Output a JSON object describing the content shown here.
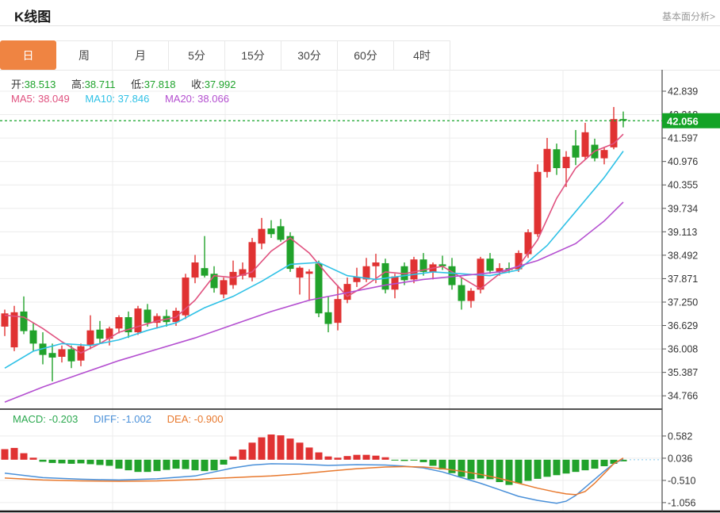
{
  "header": {
    "title": "K线图",
    "link": "基本面分析>"
  },
  "tabs": {
    "items": [
      {
        "label": "日",
        "active": true
      },
      {
        "label": "周",
        "active": false
      },
      {
        "label": "月",
        "active": false
      },
      {
        "label": "5分",
        "active": false
      },
      {
        "label": "15分",
        "active": false
      },
      {
        "label": "30分",
        "active": false
      },
      {
        "label": "60分",
        "active": false
      },
      {
        "label": "4时",
        "active": false
      }
    ]
  },
  "readouts": {
    "ohlc": [
      {
        "label": "开:",
        "value": "38.513"
      },
      {
        "label": "高:",
        "value": "38.711"
      },
      {
        "label": "低:",
        "value": "37.818"
      },
      {
        "label": "收:",
        "value": "37.992"
      }
    ],
    "ma": [
      {
        "label": "MA5:",
        "value": "38.049"
      },
      {
        "label": "MA10:",
        "value": "37.846"
      },
      {
        "label": "MA20:",
        "value": "38.066"
      }
    ],
    "macd": [
      {
        "label": "MACD:",
        "value": "-0.203"
      },
      {
        "label": "DIFF:",
        "value": "-1.002"
      },
      {
        "label": "DEA:",
        "value": "-0.900"
      }
    ]
  },
  "colors": {
    "up": "#e03232",
    "down": "#21a22b",
    "ma5": "#e0517f",
    "ma10": "#2fc1e6",
    "ma20": "#b44fd0",
    "diff": "#4a90d9",
    "dea": "#e8792e",
    "tab_active": "#ef8442",
    "price_line": "#14a327",
    "badge": "#14a327",
    "grid": "#ececec",
    "axis": "#555",
    "separator": "#1a1a1a"
  },
  "chart_data": {
    "type": "candlestick+macd",
    "title": "K线图",
    "legend": [
      "MA5",
      "MA10",
      "MA20",
      "MACD",
      "DIFF",
      "DEA"
    ],
    "grid": true,
    "y_axis_side": "right",
    "current_price": "42.056",
    "price_axis_labels": [
      "42.839",
      "42.218",
      "41.597",
      "40.976",
      "40.355",
      "39.734",
      "39.113",
      "38.492",
      "37.871",
      "37.250",
      "36.629",
      "36.008",
      "35.387",
      "34.766"
    ],
    "price_axis_top_value": 42.839,
    "price_axis_step": 0.621,
    "macd_axis_labels": [
      "0.582",
      "0.036",
      "-0.510",
      "-1.056"
    ],
    "macd_axis_top_value": 0.582,
    "macd_axis_step": 0.546,
    "candles_ohlc": [
      [
        36.6,
        37.05,
        36.35,
        36.95
      ],
      [
        36.05,
        37.15,
        35.95,
        36.98
      ],
      [
        37.0,
        37.4,
        36.4,
        36.48
      ],
      [
        36.5,
        36.7,
        35.95,
        36.15
      ],
      [
        36.15,
        36.45,
        35.6,
        35.85
      ],
      [
        35.9,
        36.15,
        35.15,
        35.78
      ],
      [
        35.8,
        36.1,
        35.65,
        36.0
      ],
      [
        36.0,
        36.1,
        35.5,
        35.68
      ],
      [
        35.7,
        36.15,
        35.55,
        36.08
      ],
      [
        36.1,
        36.9,
        36.0,
        36.5
      ],
      [
        36.52,
        36.75,
        36.15,
        36.28
      ],
      [
        36.28,
        36.6,
        36.1,
        36.55
      ],
      [
        36.55,
        36.9,
        36.42,
        36.85
      ],
      [
        36.85,
        37.0,
        36.3,
        36.45
      ],
      [
        36.45,
        37.15,
        36.38,
        37.08
      ],
      [
        37.05,
        37.2,
        36.6,
        36.7
      ],
      [
        36.7,
        36.95,
        36.55,
        36.88
      ],
      [
        36.88,
        37.05,
        36.6,
        36.72
      ],
      [
        36.72,
        37.1,
        36.62,
        37.02
      ],
      [
        36.9,
        38.0,
        36.8,
        37.9
      ],
      [
        37.9,
        38.5,
        37.75,
        38.3
      ],
      [
        38.15,
        39.0,
        37.9,
        37.95
      ],
      [
        38.0,
        38.2,
        37.5,
        37.62
      ],
      [
        37.45,
        37.9,
        37.35,
        37.83
      ],
      [
        37.7,
        38.35,
        37.6,
        38.05
      ],
      [
        37.95,
        38.3,
        37.85,
        38.12
      ],
      [
        37.9,
        38.95,
        37.8,
        38.84
      ],
      [
        38.8,
        39.48,
        38.65,
        39.19
      ],
      [
        39.2,
        39.42,
        38.95,
        39.05
      ],
      [
        39.26,
        39.45,
        38.85,
        38.9
      ],
      [
        39.0,
        39.1,
        38.05,
        38.13
      ],
      [
        37.9,
        38.2,
        37.45,
        38.16
      ],
      [
        38.0,
        38.12,
        37.28,
        38.06
      ],
      [
        38.27,
        38.35,
        36.85,
        36.95
      ],
      [
        36.98,
        37.4,
        36.45,
        36.67
      ],
      [
        36.7,
        37.7,
        36.5,
        37.33
      ],
      [
        37.31,
        37.9,
        37.22,
        37.73
      ],
      [
        37.78,
        38.16,
        37.65,
        37.92
      ],
      [
        37.85,
        38.42,
        37.78,
        38.2
      ],
      [
        38.2,
        38.53,
        37.75,
        38.3
      ],
      [
        38.28,
        38.4,
        37.48,
        37.58
      ],
      [
        37.58,
        38.0,
        37.35,
        37.93
      ],
      [
        38.2,
        38.3,
        37.7,
        37.83
      ],
      [
        37.85,
        38.45,
        37.75,
        38.38
      ],
      [
        38.38,
        38.55,
        37.95,
        38.05
      ],
      [
        38.05,
        38.3,
        37.85,
        38.25
      ],
      [
        38.25,
        38.48,
        38.1,
        38.2
      ],
      [
        38.2,
        38.42,
        37.58,
        37.7
      ],
      [
        37.7,
        37.88,
        37.05,
        37.28
      ],
      [
        37.28,
        37.62,
        37.1,
        37.55
      ],
      [
        37.58,
        38.45,
        37.48,
        38.4
      ],
      [
        38.4,
        38.55,
        38.0,
        38.08
      ],
      [
        38.05,
        38.28,
        37.95,
        38.15
      ],
      [
        38.15,
        38.3,
        38.02,
        38.1
      ],
      [
        38.12,
        38.62,
        38.05,
        38.55
      ],
      [
        38.52,
        39.18,
        38.42,
        39.1
      ],
      [
        39.05,
        40.9,
        38.98,
        40.7
      ],
      [
        40.7,
        41.6,
        40.55,
        41.31
      ],
      [
        41.3,
        41.45,
        40.62,
        40.8
      ],
      [
        40.8,
        41.25,
        40.3,
        41.1
      ],
      [
        41.4,
        41.81,
        40.88,
        41.08
      ],
      [
        41.1,
        42.0,
        41.02,
        41.75
      ],
      [
        41.42,
        41.58,
        40.98,
        41.06
      ],
      [
        41.06,
        41.35,
        40.9,
        41.28
      ],
      [
        41.35,
        42.42,
        41.3,
        42.1
      ],
      [
        42.1,
        42.3,
        41.88,
        42.06
      ]
    ],
    "ma5_points": [
      [
        0,
        36.9
      ],
      [
        2,
        36.85
      ],
      [
        4,
        36.55
      ],
      [
        6,
        36.2
      ],
      [
        8,
        35.9
      ],
      [
        10,
        36.15
      ],
      [
        12,
        36.45
      ],
      [
        14,
        36.6
      ],
      [
        16,
        36.75
      ],
      [
        18,
        36.85
      ],
      [
        20,
        37.3
      ],
      [
        22,
        37.95
      ],
      [
        24,
        37.9
      ],
      [
        26,
        38.05
      ],
      [
        28,
        38.6
      ],
      [
        30,
        38.95
      ],
      [
        32,
        38.55
      ],
      [
        34,
        37.95
      ],
      [
        36,
        37.4
      ],
      [
        38,
        37.7
      ],
      [
        40,
        38.05
      ],
      [
        42,
        38.0
      ],
      [
        44,
        38.1
      ],
      [
        46,
        38.2
      ],
      [
        48,
        37.9
      ],
      [
        50,
        37.6
      ],
      [
        52,
        38.0
      ],
      [
        54,
        38.2
      ],
      [
        56,
        38.9
      ],
      [
        58,
        40.0
      ],
      [
        60,
        40.8
      ],
      [
        62,
        41.25
      ],
      [
        64,
        41.45
      ],
      [
        65,
        41.7
      ]
    ],
    "ma10_points": [
      [
        0,
        35.5
      ],
      [
        3,
        35.95
      ],
      [
        6,
        36.15
      ],
      [
        9,
        36.1
      ],
      [
        12,
        36.25
      ],
      [
        15,
        36.5
      ],
      [
        18,
        36.7
      ],
      [
        21,
        37.1
      ],
      [
        24,
        37.4
      ],
      [
        27,
        37.8
      ],
      [
        30,
        38.25
      ],
      [
        33,
        38.3
      ],
      [
        36,
        37.95
      ],
      [
        39,
        37.85
      ],
      [
        42,
        37.95
      ],
      [
        45,
        38.05
      ],
      [
        48,
        38.0
      ],
      [
        51,
        37.95
      ],
      [
        54,
        38.1
      ],
      [
        57,
        38.75
      ],
      [
        60,
        39.65
      ],
      [
        63,
        40.55
      ],
      [
        65,
        41.25
      ]
    ],
    "ma20_points": [
      [
        0,
        34.6
      ],
      [
        4,
        35.0
      ],
      [
        8,
        35.35
      ],
      [
        12,
        35.7
      ],
      [
        16,
        36.0
      ],
      [
        20,
        36.3
      ],
      [
        24,
        36.65
      ],
      [
        28,
        37.0
      ],
      [
        32,
        37.3
      ],
      [
        36,
        37.5
      ],
      [
        40,
        37.7
      ],
      [
        44,
        37.85
      ],
      [
        48,
        37.95
      ],
      [
        52,
        38.05
      ],
      [
        56,
        38.35
      ],
      [
        60,
        38.8
      ],
      [
        63,
        39.4
      ],
      [
        65,
        39.9
      ]
    ],
    "macd_histogram": [
      0.26,
      0.29,
      0.16,
      0.05,
      -0.05,
      -0.08,
      -0.09,
      -0.1,
      -0.09,
      -0.11,
      -0.13,
      -0.15,
      -0.22,
      -0.26,
      -0.3,
      -0.3,
      -0.28,
      -0.25,
      -0.22,
      -0.23,
      -0.26,
      -0.28,
      -0.26,
      -0.12,
      0.08,
      0.25,
      0.42,
      0.55,
      0.62,
      0.6,
      0.52,
      0.42,
      0.3,
      0.18,
      0.08,
      0.05,
      0.09,
      0.12,
      0.12,
      0.1,
      0.06,
      -0.02,
      -0.03,
      -0.02,
      -0.06,
      -0.15,
      -0.24,
      -0.33,
      -0.42,
      -0.48,
      -0.46,
      -0.48,
      -0.55,
      -0.62,
      -0.58,
      -0.52,
      -0.47,
      -0.42,
      -0.38,
      -0.34,
      -0.3,
      -0.26,
      -0.22,
      -0.16,
      -0.1,
      -0.04
    ],
    "diff_points": [
      [
        0,
        -0.33
      ],
      [
        4,
        -0.44
      ],
      [
        8,
        -0.48
      ],
      [
        12,
        -0.5
      ],
      [
        16,
        -0.47
      ],
      [
        20,
        -0.4
      ],
      [
        22,
        -0.3
      ],
      [
        24,
        -0.2
      ],
      [
        26,
        -0.13
      ],
      [
        28,
        -0.1
      ],
      [
        31,
        -0.11
      ],
      [
        34,
        -0.14
      ],
      [
        37,
        -0.12
      ],
      [
        40,
        -0.13
      ],
      [
        42,
        -0.16
      ],
      [
        44,
        -0.2
      ],
      [
        46,
        -0.3
      ],
      [
        48,
        -0.44
      ],
      [
        50,
        -0.58
      ],
      [
        52,
        -0.74
      ],
      [
        54,
        -0.9
      ],
      [
        56,
        -1.0
      ],
      [
        58,
        -1.07
      ],
      [
        59,
        -1.02
      ],
      [
        60,
        -0.88
      ],
      [
        61,
        -0.68
      ],
      [
        62,
        -0.48
      ],
      [
        63,
        -0.28
      ],
      [
        64,
        -0.1
      ],
      [
        65,
        0.02
      ]
    ],
    "dea_points": [
      [
        0,
        -0.45
      ],
      [
        4,
        -0.5
      ],
      [
        8,
        -0.52
      ],
      [
        12,
        -0.53
      ],
      [
        16,
        -0.52
      ],
      [
        20,
        -0.49
      ],
      [
        22,
        -0.46
      ],
      [
        24,
        -0.44
      ],
      [
        26,
        -0.42
      ],
      [
        28,
        -0.4
      ],
      [
        31,
        -0.35
      ],
      [
        34,
        -0.28
      ],
      [
        37,
        -0.22
      ],
      [
        40,
        -0.18
      ],
      [
        42,
        -0.17
      ],
      [
        44,
        -0.18
      ],
      [
        46,
        -0.22
      ],
      [
        48,
        -0.28
      ],
      [
        50,
        -0.36
      ],
      [
        52,
        -0.46
      ],
      [
        54,
        -0.58
      ],
      [
        56,
        -0.7
      ],
      [
        58,
        -0.8
      ],
      [
        59,
        -0.84
      ],
      [
        60,
        -0.86
      ],
      [
        61,
        -0.78
      ],
      [
        62,
        -0.58
      ],
      [
        63,
        -0.34
      ],
      [
        64,
        -0.1
      ],
      [
        65,
        0.04
      ]
    ]
  }
}
